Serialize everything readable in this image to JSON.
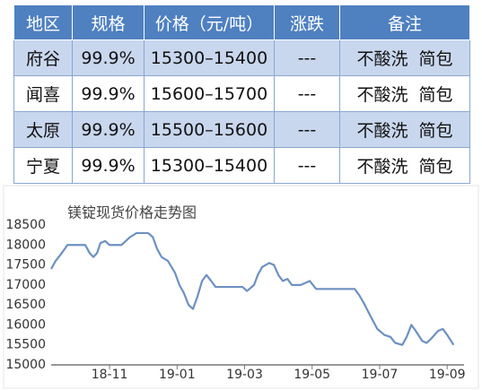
{
  "table": {
    "header": [
      "地区",
      "规格",
      "价格（元/吨）",
      "涨跌",
      "备注"
    ],
    "rows": [
      [
        "府谷",
        "99.9%",
        "15300–15400",
        "---",
        "不酸洗  简包"
      ],
      [
        "闻喜",
        "99.9%",
        "15600–15700",
        "---",
        "不酸洗  简包"
      ],
      [
        "太原",
        "99.9%",
        "15500–15600",
        "---",
        "不酸洗  简包"
      ],
      [
        "宁夏",
        "99.9%",
        "15300–15400",
        "---",
        "不酸洗  简包"
      ]
    ]
  },
  "chart_data": {
    "type": "line",
    "title": "镁锭现货价格走势图",
    "x": [
      9.27,
      9.4,
      9.54,
      9.67,
      9.75,
      10.28,
      10.41,
      10.52,
      10.63,
      10.73,
      10.87,
      11.0,
      11.35,
      11.48,
      11.61,
      11.8,
      12.14,
      12.28,
      12.41,
      12.54,
      12.73,
      12.94,
      13.07,
      13.2,
      13.34,
      13.47,
      13.6,
      13.74,
      13.87,
      14.01,
      14.14,
      14.54,
      14.94,
      15.07,
      15.28,
      15.39,
      15.52,
      15.73,
      15.87,
      16.0,
      16.13,
      16.27,
      16.4,
      16.66,
      16.93,
      17.12,
      18.26,
      18.39,
      18.53,
      18.71,
      18.93,
      19.14,
      19.32,
      19.46,
      19.67,
      19.8,
      19.94,
      20.07,
      20.26,
      20.39,
      20.52,
      20.73,
      20.87,
      21.0,
      21.19
    ],
    "series": [
      {
        "color": "#6d90c2",
        "values": [
          17400,
          17600,
          17750,
          17900,
          18000,
          18000,
          17800,
          17700,
          17800,
          18050,
          18100,
          18000,
          18000,
          18100,
          18200,
          18300,
          18300,
          18200,
          17900,
          17700,
          17600,
          17300,
          17000,
          16800,
          16500,
          16400,
          16700,
          17100,
          17250,
          17100,
          16950,
          16950,
          16950,
          16850,
          17000,
          17250,
          17450,
          17550,
          17500,
          17250,
          17100,
          17150,
          17000,
          17000,
          17100,
          16900,
          16900,
          16750,
          16550,
          16250,
          15900,
          15750,
          15700,
          15550,
          15500,
          15700,
          16000,
          15850,
          15600,
          15550,
          15650,
          15850,
          15900,
          15750,
          15500
        ]
      }
    ],
    "xlim": [
      9.27,
      21.5
    ],
    "xticks": [
      {
        "value": 11,
        "label": "18-11"
      },
      {
        "value": 13,
        "label": "19-01"
      },
      {
        "value": 15,
        "label": "19-03"
      },
      {
        "value": 17,
        "label": "19-05"
      },
      {
        "value": 19,
        "label": "19-07"
      },
      {
        "value": 21,
        "label": "19-09"
      }
    ],
    "ylim": [
      15000,
      18500
    ],
    "yticks": [
      15000,
      15500,
      16000,
      16500,
      17000,
      17500,
      18000,
      18500
    ],
    "grid": false
  }
}
